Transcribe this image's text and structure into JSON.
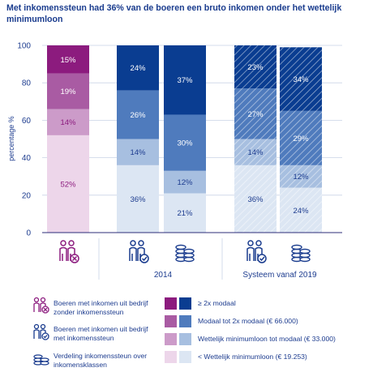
{
  "title": "Met inkomenssteun had 36% van de boeren een bruto inkomen onder het wettelijk minimumloon",
  "icons": {
    "farmers_no_support": "two-farmers-with-x-icon",
    "farmers_with_support": "two-farmers-with-check-icon",
    "distribution": "coin-stacks-icon"
  },
  "colors": {
    "purple_4": "#8c1b7e",
    "purple_3": "#a95ba3",
    "purple_2": "#cc9bc9",
    "purple_1": "#edd6ea",
    "blue_4": "#0a3d91",
    "blue_3": "#4f7bbd",
    "blue_2": "#a7bfe0",
    "blue_1": "#dce6f3"
  },
  "chart_data": {
    "type": "bar",
    "stacked": true,
    "ylabel": "percentage %",
    "ylim": [
      0,
      100
    ],
    "yticks": [
      0,
      20,
      40,
      60,
      80,
      100
    ],
    "grid": true,
    "groups": [
      {
        "label": "",
        "icons": [
          "farmers_no_support"
        ]
      },
      {
        "label": "2014",
        "icons": [
          "farmers_with_support",
          "distribution"
        ]
      },
      {
        "label": "Systeem vanaf 2019",
        "icons": [
          "farmers_with_support",
          "distribution"
        ]
      }
    ],
    "bars": [
      {
        "group": 0,
        "palette": "purple",
        "hatched": false,
        "values": [
          52,
          14,
          19,
          15
        ]
      },
      {
        "group": 1,
        "palette": "blue",
        "hatched": false,
        "values": [
          36,
          14,
          26,
          24
        ]
      },
      {
        "group": 1,
        "palette": "blue",
        "hatched": false,
        "values": [
          21,
          12,
          30,
          37
        ]
      },
      {
        "group": 2,
        "palette": "blue",
        "hatched": true,
        "values": [
          36,
          14,
          27,
          23
        ]
      },
      {
        "group": 2,
        "palette": "blue",
        "hatched": true,
        "values": [
          24,
          12,
          29,
          34
        ]
      }
    ],
    "value_labels": [
      [
        "52%",
        "14%",
        "19%",
        "15%"
      ],
      [
        "36%",
        "14%",
        "26%",
        "24%"
      ],
      [
        "21%",
        "12%",
        "30%",
        "37%"
      ],
      [
        "36%",
        "14%",
        "27%",
        "23%"
      ],
      [
        "24%",
        "12%",
        "29%",
        "34%"
      ]
    ],
    "segments_order_bottom_to_top": [
      "< Wettelijk minimumloon (€ 19.253)",
      "Wettelijk minimumloon tot modaal (€ 33.000)",
      "Modaal tot 2x modaal (€ 66.000)",
      "≥ 2x modaal"
    ]
  },
  "legend": {
    "left": [
      {
        "icon": "farmers_no_support",
        "text": "Boeren met inkomen uit bedrijf zonder inkomenssteun"
      },
      {
        "icon": "farmers_with_support",
        "text": "Boeren met inkomen uit bedrijf met inkomenssteun"
      },
      {
        "icon": "distribution",
        "text": "Verdeling inkomenssteun over inkomensklassen"
      }
    ],
    "right": [
      {
        "text": "≥ 2x modaal",
        "level": 4
      },
      {
        "text": "Modaal tot 2x modaal (€ 66.000)",
        "level": 3
      },
      {
        "text": "Wettelijk minimumloon tot modaal (€ 33.000)",
        "level": 2
      },
      {
        "text": "< Wettelijk minimumloon (€ 19.253)",
        "level": 1
      }
    ]
  }
}
